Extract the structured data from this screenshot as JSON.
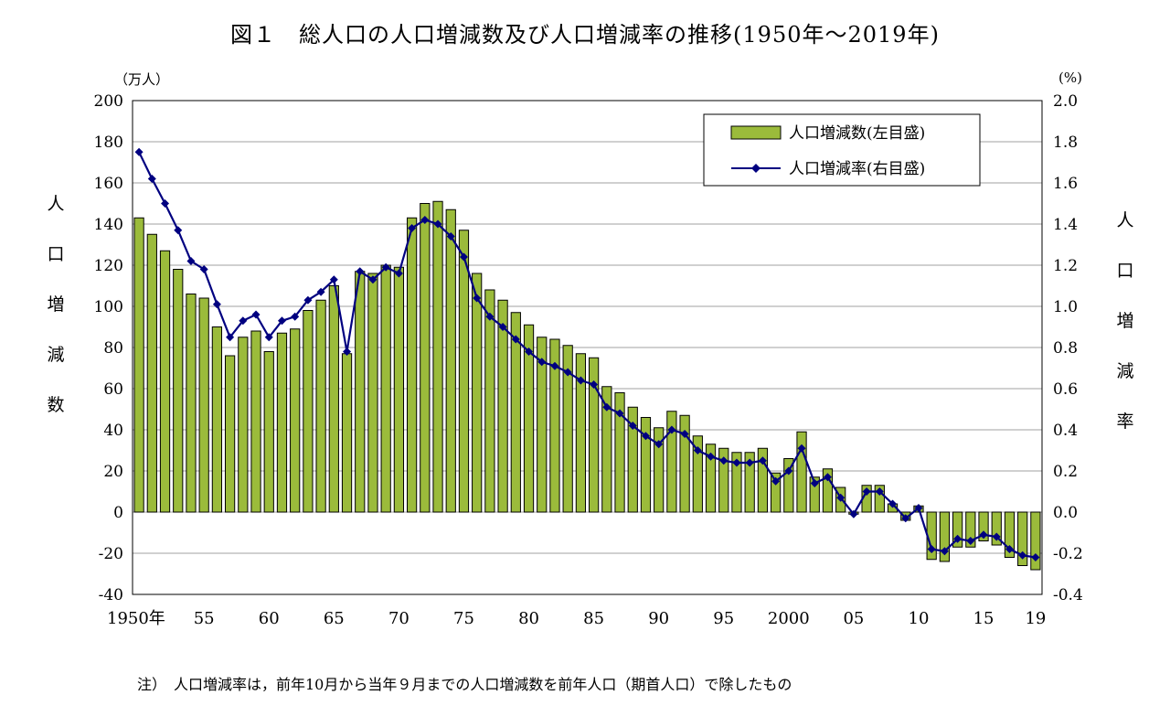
{
  "title": "図１　総人口の人口増減数及び人口増減率の推移(1950年～2019年)",
  "left_unit": "（万人）",
  "right_unit": "(%)",
  "left_axis_title": [
    "人",
    "口",
    "増",
    "減",
    "数"
  ],
  "right_axis_title": [
    "人",
    "口",
    "増",
    "減",
    "率"
  ],
  "note": "注）　人口増減率は，前年10月から当年９月までの人口増減数を前年人口（期首人口）で除したもの",
  "colors": {
    "bar_fill": "#9bbb3b",
    "bar_stroke": "#000000",
    "line": "#000080",
    "grid": "#a0a0a0"
  },
  "chart_data": {
    "type": "bar",
    "x_tick_labels": [
      {
        "year": 1950,
        "label": "1950年"
      },
      {
        "year": 1955,
        "label": "55"
      },
      {
        "year": 1960,
        "label": "60"
      },
      {
        "year": 1965,
        "label": "65"
      },
      {
        "year": 1970,
        "label": "70"
      },
      {
        "year": 1975,
        "label": "75"
      },
      {
        "year": 1980,
        "label": "80"
      },
      {
        "year": 1985,
        "label": "85"
      },
      {
        "year": 1990,
        "label": "90"
      },
      {
        "year": 1995,
        "label": "95"
      },
      {
        "year": 2000,
        "label": "2000"
      },
      {
        "year": 2005,
        "label": "05"
      },
      {
        "year": 2010,
        "label": "10"
      },
      {
        "year": 2015,
        "label": "15"
      },
      {
        "year": 2019,
        "label": "19"
      }
    ],
    "years": [
      1950,
      1951,
      1952,
      1953,
      1954,
      1955,
      1956,
      1957,
      1958,
      1959,
      1960,
      1961,
      1962,
      1963,
      1964,
      1965,
      1966,
      1967,
      1968,
      1969,
      1970,
      1971,
      1972,
      1973,
      1974,
      1975,
      1976,
      1977,
      1978,
      1979,
      1980,
      1981,
      1982,
      1983,
      1984,
      1985,
      1986,
      1987,
      1988,
      1989,
      1990,
      1991,
      1992,
      1993,
      1994,
      1995,
      1996,
      1997,
      1998,
      1999,
      2000,
      2001,
      2002,
      2003,
      2004,
      2005,
      2006,
      2007,
      2008,
      2009,
      2010,
      2011,
      2012,
      2013,
      2014,
      2015,
      2016,
      2017,
      2018,
      2019
    ],
    "y_left_ticks": [
      -40,
      -20,
      0,
      20,
      40,
      60,
      80,
      100,
      120,
      140,
      160,
      180,
      200
    ],
    "y_right_ticks": [
      "-0.4",
      "-0.2",
      "0.0",
      "0.2",
      "0.4",
      "0.6",
      "0.8",
      "1.0",
      "1.2",
      "1.4",
      "1.6",
      "1.8",
      "2.0"
    ],
    "ylim_left": [
      -40,
      200
    ],
    "ylim_right": [
      -0.4,
      2.0
    ],
    "legend_position": "top-right",
    "grid": true,
    "series": [
      {
        "name": "人口増減数(左目盛)",
        "type": "bar",
        "axis": "left",
        "values": [
          143,
          135,
          127,
          118,
          106,
          104,
          90,
          76,
          85,
          88,
          78,
          87,
          89,
          98,
          103,
          110,
          77,
          117,
          116,
          120,
          119,
          143,
          150,
          151,
          147,
          137,
          116,
          108,
          103,
          97,
          91,
          85,
          84,
          81,
          77,
          75,
          61,
          58,
          51,
          46,
          41,
          49,
          47,
          37,
          33,
          31,
          29,
          29,
          31,
          19,
          26,
          39,
          17,
          21,
          12,
          -1,
          13,
          13,
          4,
          -4,
          3,
          -23,
          -24,
          -17,
          -17,
          -14,
          -16,
          -22,
          -26,
          -28
        ]
      },
      {
        "name": "人口増減率(右目盛)",
        "type": "line",
        "axis": "right",
        "values": [
          1.75,
          1.62,
          1.5,
          1.37,
          1.22,
          1.18,
          1.01,
          0.85,
          0.93,
          0.96,
          0.85,
          0.93,
          0.95,
          1.03,
          1.07,
          1.13,
          0.78,
          1.17,
          1.13,
          1.19,
          1.16,
          1.38,
          1.42,
          1.4,
          1.34,
          1.24,
          1.04,
          0.95,
          0.9,
          0.84,
          0.78,
          0.73,
          0.71,
          0.68,
          0.64,
          0.62,
          0.51,
          0.48,
          0.42,
          0.37,
          0.33,
          0.4,
          0.38,
          0.3,
          0.27,
          0.25,
          0.24,
          0.24,
          0.25,
          0.15,
          0.2,
          0.31,
          0.14,
          0.17,
          0.07,
          -0.01,
          0.1,
          0.1,
          0.04,
          -0.03,
          0.02,
          -0.18,
          -0.19,
          -0.13,
          -0.14,
          -0.11,
          -0.12,
          -0.18,
          -0.21,
          -0.22
        ]
      }
    ]
  }
}
